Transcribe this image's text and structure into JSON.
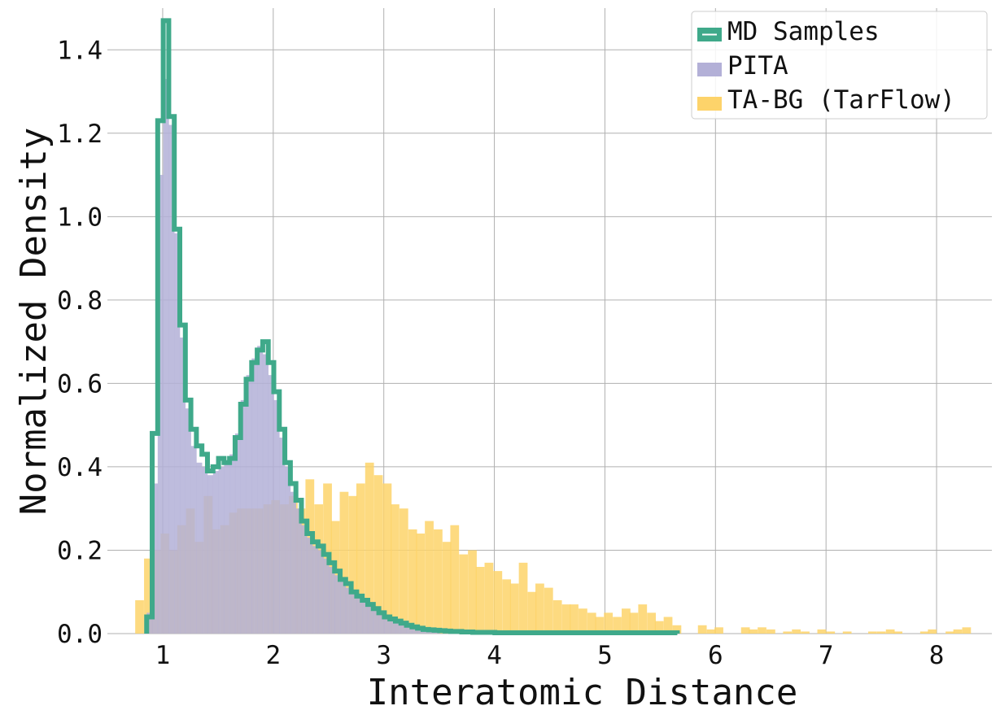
{
  "chart_data": {
    "type": "histogram",
    "title": "",
    "xlabel": "Interatomic Distance",
    "ylabel": "Normalized Density",
    "xlim": [
      0.5,
      8.5
    ],
    "ylim": [
      0.0,
      1.5
    ],
    "x_ticks": [
      1,
      2,
      3,
      4,
      5,
      6,
      7,
      8
    ],
    "x_tick_labels": [
      "1",
      "2",
      "3",
      "4",
      "5",
      "6",
      "7",
      "8"
    ],
    "y_ticks": [
      0.0,
      0.2,
      0.4,
      0.6,
      0.8,
      1.0,
      1.2,
      1.4
    ],
    "y_tick_labels": [
      "0.0",
      "0.2",
      "0.4",
      "0.6",
      "0.8",
      "1.0",
      "1.2",
      "1.4"
    ],
    "grid": true,
    "legend_position": "top-right",
    "colors": {
      "md": "#3fa98a",
      "pita": "#b3b0d7",
      "tabg": "#fdd36a"
    },
    "series": [
      {
        "name": "MD Samples",
        "style": "step",
        "bin_width": 0.05,
        "x": [
          0.88,
          0.93,
          0.98,
          1.03,
          1.08,
          1.13,
          1.18,
          1.23,
          1.28,
          1.33,
          1.38,
          1.43,
          1.48,
          1.53,
          1.58,
          1.63,
          1.68,
          1.73,
          1.78,
          1.83,
          1.88,
          1.93,
          1.98,
          2.03,
          2.08,
          2.13,
          2.18,
          2.23,
          2.28,
          2.33,
          2.38,
          2.43,
          2.48,
          2.53,
          2.58,
          2.63,
          2.68,
          2.73,
          2.78,
          2.83,
          2.88,
          2.93,
          2.98,
          3.03,
          3.08,
          3.13,
          3.18,
          3.23,
          3.28,
          3.33,
          3.38,
          3.43,
          3.48,
          3.53,
          3.58,
          3.63,
          3.68,
          3.73,
          3.78,
          3.83,
          3.88,
          3.93,
          3.98,
          4.03,
          4.08,
          4.13,
          4.18,
          4.23,
          4.28,
          4.33,
          4.38,
          4.43,
          4.48,
          4.53,
          4.58,
          4.63,
          4.68,
          4.73,
          4.78,
          4.83,
          4.88,
          4.93,
          4.98,
          5.03,
          5.08,
          5.13,
          5.18,
          5.23,
          5.28,
          5.33,
          5.38,
          5.43,
          5.48,
          5.53,
          5.58,
          5.63
        ],
        "values": [
          0.04,
          0.48,
          1.23,
          1.47,
          1.24,
          0.97,
          0.74,
          0.56,
          0.49,
          0.45,
          0.43,
          0.39,
          0.4,
          0.42,
          0.41,
          0.42,
          0.47,
          0.55,
          0.61,
          0.65,
          0.68,
          0.7,
          0.65,
          0.58,
          0.49,
          0.41,
          0.36,
          0.32,
          0.27,
          0.24,
          0.22,
          0.21,
          0.19,
          0.17,
          0.15,
          0.13,
          0.12,
          0.1,
          0.09,
          0.08,
          0.07,
          0.06,
          0.05,
          0.04,
          0.035,
          0.03,
          0.025,
          0.02,
          0.016,
          0.013,
          0.01,
          0.009,
          0.008,
          0.007,
          0.006,
          0.005,
          0.005,
          0.004,
          0.004,
          0.003,
          0.003,
          0.003,
          0.003,
          0.002,
          0.002,
          0.002,
          0.002,
          0.002,
          0.002,
          0.002,
          0.002,
          0.002,
          0.002,
          0.002,
          0.002,
          0.002,
          0.002,
          0.002,
          0.002,
          0.002,
          0.002,
          0.002,
          0.002,
          0.002,
          0.002,
          0.002,
          0.002,
          0.002,
          0.002,
          0.002,
          0.002,
          0.002,
          0.002,
          0.002,
          0.002,
          0.002
        ]
      },
      {
        "name": "PITA",
        "style": "filled",
        "bin_width": 0.05,
        "x": [
          0.88,
          0.93,
          0.98,
          1.03,
          1.08,
          1.13,
          1.18,
          1.23,
          1.28,
          1.33,
          1.38,
          1.43,
          1.48,
          1.53,
          1.58,
          1.63,
          1.68,
          1.73,
          1.78,
          1.83,
          1.88,
          1.93,
          1.98,
          2.03,
          2.08,
          2.13,
          2.18,
          2.23,
          2.28,
          2.33,
          2.38,
          2.43,
          2.48,
          2.53,
          2.58,
          2.63,
          2.68,
          2.73,
          2.78,
          2.83,
          2.88,
          2.93,
          2.98,
          3.03,
          3.08,
          3.13,
          3.18,
          3.23,
          3.28,
          3.33,
          3.38,
          3.43,
          3.48
        ],
        "values": [
          0.05,
          0.36,
          1.1,
          1.33,
          1.22,
          0.96,
          0.71,
          0.54,
          0.45,
          0.41,
          0.4,
          0.38,
          0.39,
          0.4,
          0.41,
          0.43,
          0.48,
          0.56,
          0.62,
          0.66,
          0.69,
          0.67,
          0.62,
          0.56,
          0.47,
          0.4,
          0.34,
          0.3,
          0.26,
          0.23,
          0.21,
          0.2,
          0.18,
          0.16,
          0.14,
          0.13,
          0.11,
          0.1,
          0.09,
          0.08,
          0.07,
          0.06,
          0.05,
          0.04,
          0.035,
          0.03,
          0.025,
          0.02,
          0.015,
          0.012,
          0.01,
          0.008,
          0.006
        ]
      },
      {
        "name": "TA-BG (TarFlow)",
        "style": "filled",
        "bin_width": 0.077,
        "x": [
          0.79,
          0.87,
          0.94,
          1.02,
          1.1,
          1.17,
          1.25,
          1.33,
          1.41,
          1.48,
          1.56,
          1.64,
          1.71,
          1.79,
          1.87,
          1.95,
          2.02,
          2.1,
          2.18,
          2.25,
          2.33,
          2.41,
          2.49,
          2.56,
          2.64,
          2.72,
          2.79,
          2.87,
          2.95,
          3.03,
          3.1,
          3.18,
          3.26,
          3.33,
          3.41,
          3.49,
          3.57,
          3.64,
          3.72,
          3.8,
          3.87,
          3.95,
          4.03,
          4.11,
          4.18,
          4.26,
          4.34,
          4.41,
          4.49,
          4.57,
          4.65,
          4.72,
          4.8,
          4.88,
          4.95,
          5.03,
          5.11,
          5.19,
          5.26,
          5.34,
          5.42,
          5.49,
          5.57,
          5.65,
          5.73,
          5.8,
          5.88,
          5.96,
          6.03,
          6.11,
          6.19,
          6.27,
          6.34,
          6.42,
          6.5,
          6.57,
          6.65,
          6.73,
          6.81,
          6.88,
          6.96,
          7.04,
          7.11,
          7.19,
          7.27,
          7.35,
          7.42,
          7.5,
          7.58,
          7.65,
          7.73,
          7.81,
          7.89,
          7.96,
          8.04,
          8.12,
          8.19,
          8.27
        ],
        "values": [
          0.08,
          0.18,
          0.2,
          0.24,
          0.2,
          0.26,
          0.3,
          0.22,
          0.33,
          0.25,
          0.26,
          0.29,
          0.3,
          0.3,
          0.3,
          0.31,
          0.32,
          0.31,
          0.33,
          0.3,
          0.37,
          0.31,
          0.36,
          0.27,
          0.34,
          0.33,
          0.36,
          0.41,
          0.38,
          0.36,
          0.31,
          0.3,
          0.25,
          0.24,
          0.27,
          0.25,
          0.22,
          0.26,
          0.19,
          0.2,
          0.16,
          0.17,
          0.15,
          0.13,
          0.12,
          0.17,
          0.1,
          0.12,
          0.11,
          0.08,
          0.07,
          0.07,
          0.06,
          0.05,
          0.04,
          0.05,
          0.04,
          0.06,
          0.05,
          0.07,
          0.05,
          0.03,
          0.04,
          0.02,
          0.0,
          0.0,
          0.02,
          0.01,
          0.015,
          0.0,
          0.0,
          0.015,
          0.01,
          0.015,
          0.01,
          0.0,
          0.005,
          0.01,
          0.005,
          0.0,
          0.01,
          0.005,
          0.0,
          0.005,
          0.0,
          0.0,
          0.005,
          0.005,
          0.01,
          0.005,
          0.0,
          0.0,
          0.005,
          0.01,
          0.0,
          0.005,
          0.01,
          0.015
        ]
      }
    ]
  }
}
